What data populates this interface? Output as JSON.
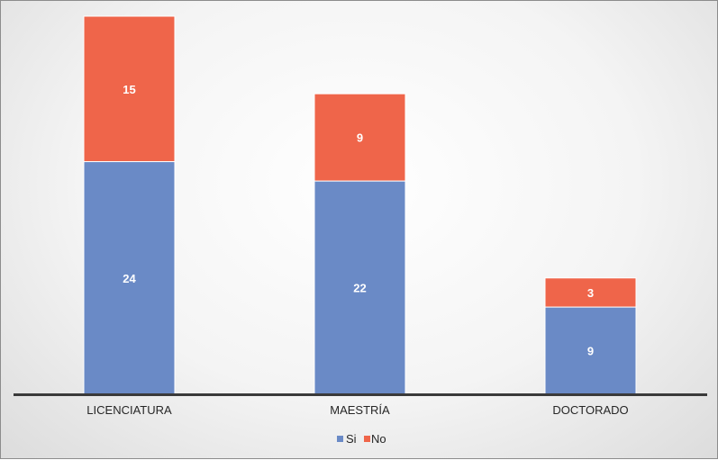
{
  "chart_data": {
    "type": "bar",
    "stacked": true,
    "categories": [
      "LICENCIATURA",
      "MAESTRÍA",
      "DOCTORADO"
    ],
    "series": [
      {
        "name": "Si",
        "values": [
          24,
          22,
          9
        ],
        "color": "#6a8ac6"
      },
      {
        "name": "No",
        "values": [
          15,
          9,
          3
        ],
        "color": "#ef654a"
      }
    ],
    "stack_totals": [
      39,
      31,
      12
    ],
    "grid": false,
    "legend_position": "bottom",
    "background": "#f2f2f2"
  }
}
